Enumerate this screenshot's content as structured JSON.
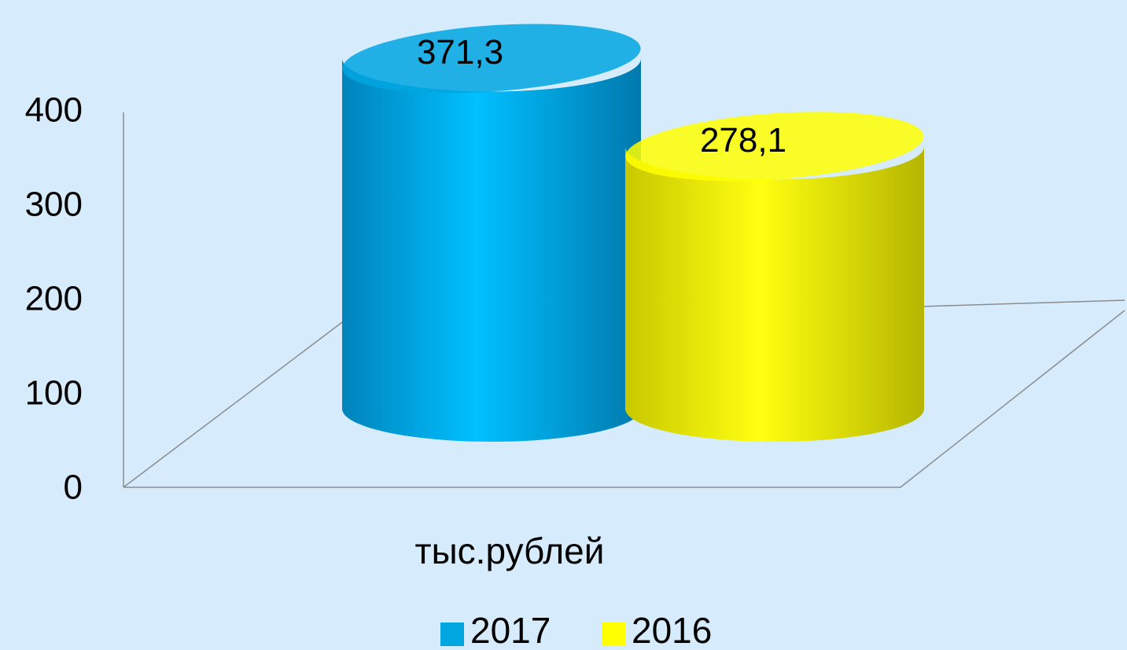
{
  "chart_data": {
    "type": "bar3d",
    "categories": [
      "тыс.рублей"
    ],
    "series": [
      {
        "name": "2017",
        "color": "#00a6e0",
        "values": [
          371.3
        ],
        "value_labels": [
          "371,3"
        ]
      },
      {
        "name": "2016",
        "color": "#ffff00",
        "values": [
          278.1
        ],
        "value_labels": [
          "278,1"
        ]
      }
    ],
    "ylim": [
      0,
      400
    ],
    "yticks": [
      0,
      100,
      200,
      300,
      400
    ],
    "legend": "bottom"
  }
}
